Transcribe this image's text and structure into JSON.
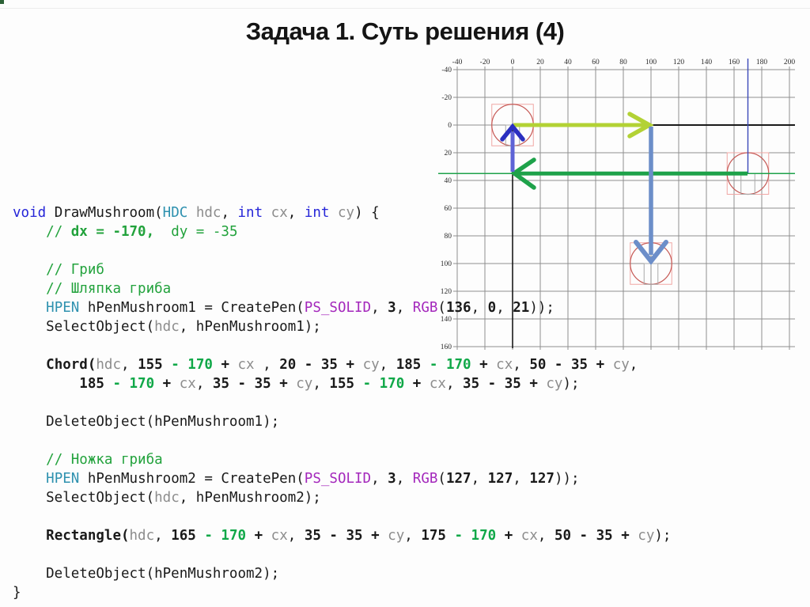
{
  "slide": {
    "title": "Задача 1. Суть решения (4)"
  },
  "diagram": {
    "x_ticks": [
      "-40",
      "-20",
      "0",
      "20",
      "40",
      "60",
      "80",
      "100",
      "120",
      "140",
      "160",
      "180",
      "200"
    ],
    "y_ticks": [
      "-40",
      "-20",
      "0",
      "20",
      "40",
      "60",
      "80",
      "100",
      "120",
      "140",
      "160"
    ],
    "colors": {
      "grid": "#8f8f8f",
      "axis": "#1a1a1a",
      "chartreuse": "#b3d235",
      "green": "#1ea24a",
      "steelblue": "#6c8ec9",
      "violet_shaft": "#5e63d6",
      "violet_head": "#2a2fc0",
      "navy": "#3a49b8",
      "circle_red": "#c65a56",
      "square_pink": "#f0a6a4",
      "leg_gray": "#aaaaaa"
    }
  },
  "code": {
    "lines": [
      [
        {
          "t": "void",
          "c": "k"
        },
        {
          "t": " DrawMushroom(",
          "c": "n"
        },
        {
          "t": "HDC",
          "c": "t"
        },
        {
          "t": " ",
          "c": "n"
        },
        {
          "t": "hdc",
          "c": "g"
        },
        {
          "t": ", ",
          "c": "n"
        },
        {
          "t": "int",
          "c": "k"
        },
        {
          "t": " ",
          "c": "n"
        },
        {
          "t": "cx",
          "c": "g"
        },
        {
          "t": ", ",
          "c": "n"
        },
        {
          "t": "int",
          "c": "k"
        },
        {
          "t": " ",
          "c": "n"
        },
        {
          "t": "cy",
          "c": "g"
        },
        {
          "t": ") {",
          "c": "n"
        }
      ],
      [
        {
          "t": "    ",
          "c": "n"
        },
        {
          "t": "// ",
          "c": "c"
        },
        {
          "t": "dx = -170,",
          "c": "cb"
        },
        {
          "t": "  dy = -35",
          "c": "c"
        }
      ],
      [],
      [
        {
          "t": "    ",
          "c": "n"
        },
        {
          "t": "// Гриб",
          "c": "c"
        }
      ],
      [
        {
          "t": "    ",
          "c": "n"
        },
        {
          "t": "// Шляпка гриба",
          "c": "c"
        }
      ],
      [
        {
          "t": "    ",
          "c": "n"
        },
        {
          "t": "HPEN",
          "c": "t"
        },
        {
          "t": " hPenMushroom1 = CreatePen(",
          "c": "n"
        },
        {
          "t": "PS_SOLID",
          "c": "p"
        },
        {
          "t": ", ",
          "c": "n"
        },
        {
          "t": "3",
          "c": "b"
        },
        {
          "t": ", ",
          "c": "n"
        },
        {
          "t": "RGB",
          "c": "p"
        },
        {
          "t": "(",
          "c": "n"
        },
        {
          "t": "136",
          "c": "b"
        },
        {
          "t": ", ",
          "c": "n"
        },
        {
          "t": "0",
          "c": "b"
        },
        {
          "t": ", ",
          "c": "n"
        },
        {
          "t": "21",
          "c": "b"
        },
        {
          "t": "));",
          "c": "n"
        }
      ],
      [
        {
          "t": "    SelectObject(",
          "c": "n"
        },
        {
          "t": "hdc",
          "c": "g"
        },
        {
          "t": ", hPenMushroom1);",
          "c": "n"
        }
      ],
      [],
      [
        {
          "t": "    ",
          "c": "n"
        },
        {
          "t": "Chord(",
          "c": "b"
        },
        {
          "t": "hdc",
          "c": "g"
        },
        {
          "t": ", ",
          "c": "n"
        },
        {
          "t": "155 ",
          "c": "b"
        },
        {
          "t": "- 170",
          "c": "gb"
        },
        {
          "t": " + ",
          "c": "b"
        },
        {
          "t": "cx",
          "c": "g"
        },
        {
          "t": " , ",
          "c": "n"
        },
        {
          "t": "20 - 35 + ",
          "c": "b"
        },
        {
          "t": "cy",
          "c": "g"
        },
        {
          "t": ", ",
          "c": "n"
        },
        {
          "t": "185 ",
          "c": "b"
        },
        {
          "t": "- 170",
          "c": "gb"
        },
        {
          "t": " + ",
          "c": "b"
        },
        {
          "t": "cx",
          "c": "g"
        },
        {
          "t": ", ",
          "c": "n"
        },
        {
          "t": "50 - 35 + ",
          "c": "b"
        },
        {
          "t": "cy",
          "c": "g"
        },
        {
          "t": ",",
          "c": "n"
        }
      ],
      [
        {
          "t": "        ",
          "c": "n"
        },
        {
          "t": "185 ",
          "c": "b"
        },
        {
          "t": "- 170",
          "c": "gb"
        },
        {
          "t": " + ",
          "c": "b"
        },
        {
          "t": "cx",
          "c": "g"
        },
        {
          "t": ", ",
          "c": "n"
        },
        {
          "t": "35 - 35 + ",
          "c": "b"
        },
        {
          "t": "cy",
          "c": "g"
        },
        {
          "t": ", ",
          "c": "n"
        },
        {
          "t": "155 ",
          "c": "b"
        },
        {
          "t": "- 170",
          "c": "gb"
        },
        {
          "t": " + ",
          "c": "b"
        },
        {
          "t": "cx",
          "c": "g"
        },
        {
          "t": ", ",
          "c": "n"
        },
        {
          "t": "35 - 35 + ",
          "c": "b"
        },
        {
          "t": "cy",
          "c": "g"
        },
        {
          "t": ");",
          "c": "n"
        }
      ],
      [],
      [
        {
          "t": "    DeleteObject(hPenMushroom1);",
          "c": "n"
        }
      ],
      [],
      [
        {
          "t": "    ",
          "c": "n"
        },
        {
          "t": "// Ножка гриба",
          "c": "c"
        }
      ],
      [
        {
          "t": "    ",
          "c": "n"
        },
        {
          "t": "HPEN",
          "c": "t"
        },
        {
          "t": " hPenMushroom2 = CreatePen(",
          "c": "n"
        },
        {
          "t": "PS_SOLID",
          "c": "p"
        },
        {
          "t": ", ",
          "c": "n"
        },
        {
          "t": "3",
          "c": "b"
        },
        {
          "t": ", ",
          "c": "n"
        },
        {
          "t": "RGB",
          "c": "p"
        },
        {
          "t": "(",
          "c": "n"
        },
        {
          "t": "127",
          "c": "b"
        },
        {
          "t": ", ",
          "c": "n"
        },
        {
          "t": "127",
          "c": "b"
        },
        {
          "t": ", ",
          "c": "n"
        },
        {
          "t": "127",
          "c": "b"
        },
        {
          "t": "));",
          "c": "n"
        }
      ],
      [
        {
          "t": "    SelectObject(",
          "c": "n"
        },
        {
          "t": "hdc",
          "c": "g"
        },
        {
          "t": ", hPenMushroom2);",
          "c": "n"
        }
      ],
      [],
      [
        {
          "t": "    ",
          "c": "n"
        },
        {
          "t": "Rectangle(",
          "c": "b"
        },
        {
          "t": "hdc",
          "c": "g"
        },
        {
          "t": ", ",
          "c": "n"
        },
        {
          "t": "165 ",
          "c": "b"
        },
        {
          "t": "- 170",
          "c": "gb"
        },
        {
          "t": " + ",
          "c": "b"
        },
        {
          "t": "cx",
          "c": "g"
        },
        {
          "t": ", ",
          "c": "n"
        },
        {
          "t": "35 - 35 + ",
          "c": "b"
        },
        {
          "t": "cy",
          "c": "g"
        },
        {
          "t": ", ",
          "c": "n"
        },
        {
          "t": "175 ",
          "c": "b"
        },
        {
          "t": "- 170",
          "c": "gb"
        },
        {
          "t": " + ",
          "c": "b"
        },
        {
          "t": "cx",
          "c": "g"
        },
        {
          "t": ", ",
          "c": "n"
        },
        {
          "t": "50 - 35 + ",
          "c": "b"
        },
        {
          "t": "cy",
          "c": "g"
        },
        {
          "t": ");",
          "c": "n"
        }
      ],
      [],
      [
        {
          "t": "    DeleteObject(hPenMushroom2);",
          "c": "n"
        }
      ],
      [
        {
          "t": "}",
          "c": "n"
        }
      ]
    ]
  }
}
